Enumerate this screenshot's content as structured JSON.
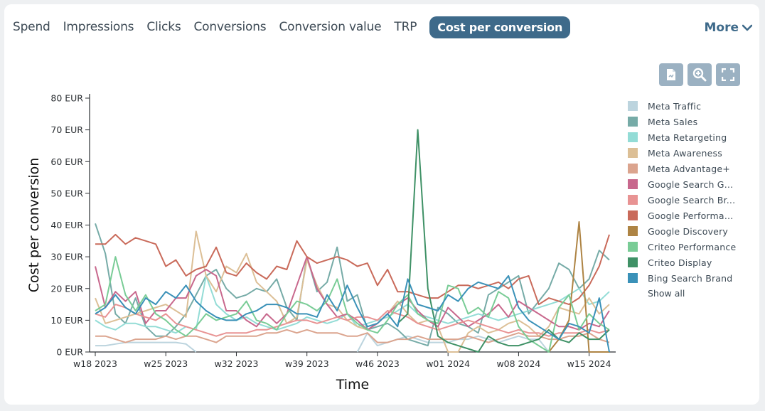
{
  "tabs": [
    {
      "label": "Spend"
    },
    {
      "label": "Impressions"
    },
    {
      "label": "Clicks"
    },
    {
      "label": "Conversions"
    },
    {
      "label": "Conversion value"
    },
    {
      "label": "TRP"
    },
    {
      "label": "Cost per conversion",
      "active": true
    }
  ],
  "more_label": "More",
  "toolbar": {
    "icons": [
      "export-icon",
      "zoom-icon",
      "fullscreen-icon"
    ]
  },
  "legend": {
    "items": [
      {
        "label": "Meta Traffic",
        "color": "#bcd4de"
      },
      {
        "label": "Meta Sales",
        "color": "#76aba7"
      },
      {
        "label": "Meta Retargeting",
        "color": "#93dcd6"
      },
      {
        "label": "Meta Awareness",
        "color": "#dcbf96"
      },
      {
        "label": "Meta Advantage+",
        "color": "#dba48e"
      },
      {
        "label": "Google Search Ge...",
        "color": "#c8688d"
      },
      {
        "label": "Google Search Br...",
        "color": "#e89393"
      },
      {
        "label": "Google Performan...",
        "color": "#c96a5a"
      },
      {
        "label": "Google Discovery",
        "color": "#ae8444"
      },
      {
        "label": "Criteo Performance",
        "color": "#79cc96"
      },
      {
        "label": "Criteo Display",
        "color": "#3f9166"
      },
      {
        "label": "Bing Search Brand",
        "color": "#3a91b8"
      }
    ],
    "show_all": "Show all"
  },
  "chart_data": {
    "type": "line",
    "xlabel": "Time",
    "ylabel": "Cost per conversion",
    "ylim": [
      0,
      80
    ],
    "yticks": [
      "0 EUR",
      "10 EUR",
      "20 EUR",
      "30 EUR",
      "40 EUR",
      "50 EUR",
      "60 EUR",
      "70 EUR",
      "80 EUR"
    ],
    "x_tick_labels": [
      "w18 2023",
      "w25 2023",
      "w32 2023",
      "w39 2023",
      "w46 2023",
      "w01 2024",
      "w08 2024",
      "w15 2024"
    ],
    "x_tick_indices": [
      0,
      7,
      14,
      21,
      28,
      35,
      42,
      49
    ],
    "x": [
      "w18 2023",
      "w19 2023",
      "w20 2023",
      "w21 2023",
      "w22 2023",
      "w23 2023",
      "w24 2023",
      "w25 2023",
      "w26 2023",
      "w27 2023",
      "w28 2023",
      "w29 2023",
      "w30 2023",
      "w31 2023",
      "w32 2023",
      "w33 2023",
      "w34 2023",
      "w35 2023",
      "w36 2023",
      "w37 2023",
      "w38 2023",
      "w39 2023",
      "w40 2023",
      "w41 2023",
      "w42 2023",
      "w43 2023",
      "w44 2023",
      "w45 2023",
      "w46 2023",
      "w47 2023",
      "w48 2023",
      "w49 2023",
      "w50 2023",
      "w51 2023",
      "w52 2023",
      "w01 2024",
      "w02 2024",
      "w03 2024",
      "w04 2024",
      "w05 2024",
      "w06 2024",
      "w07 2024",
      "w08 2024",
      "w09 2024",
      "w10 2024",
      "w11 2024",
      "w12 2024",
      "w13 2024",
      "w14 2024",
      "w15 2024",
      "w16 2024",
      "w17 2024"
    ],
    "grid": false,
    "legend_position": "right",
    "series": [
      {
        "name": "Meta Traffic",
        "color": "#bcd4de",
        "values": [
          2,
          2,
          2.5,
          3,
          3,
          3,
          3,
          3,
          3,
          2.5,
          0,
          null,
          null,
          null,
          null,
          null,
          null,
          null,
          null,
          null,
          null,
          null,
          null,
          null,
          null,
          null,
          0,
          6,
          2,
          3,
          4,
          5,
          4,
          3,
          3,
          3,
          4,
          4,
          5,
          4,
          3,
          4,
          5,
          4,
          4,
          0,
          null,
          null,
          null,
          null,
          null,
          null
        ]
      },
      {
        "name": "Meta Sales",
        "color": "#76aba7",
        "values": [
          40.5,
          31,
          12,
          9,
          17,
          8,
          5,
          5,
          8,
          12,
          18,
          24,
          26,
          20,
          17,
          18,
          20,
          19,
          23,
          14,
          10,
          30,
          19,
          22,
          33,
          16,
          18,
          7,
          8,
          9,
          7,
          4,
          3,
          2,
          14,
          12,
          9,
          8,
          6,
          18,
          20,
          22,
          24,
          12,
          16,
          20,
          28,
          26,
          20,
          23,
          32,
          29
        ]
      },
      {
        "name": "Meta Retargeting",
        "color": "#93dcd6",
        "values": [
          10,
          8,
          7,
          9,
          9,
          8,
          8,
          7,
          6,
          8,
          7,
          24,
          15,
          12,
          10,
          11,
          9,
          8,
          7,
          8,
          9,
          11,
          10,
          9,
          10,
          12,
          8,
          9,
          10,
          11,
          13,
          15,
          12,
          11,
          10,
          9,
          10,
          11,
          12,
          11,
          10,
          11,
          12,
          13,
          14,
          15,
          16,
          18,
          20,
          15,
          16,
          19
        ]
      },
      {
        "name": "Meta Awareness",
        "color": "#dcbf96",
        "values": [
          17,
          9,
          10,
          11,
          12,
          13,
          14,
          15,
          13,
          11,
          38,
          24,
          19,
          27,
          25,
          31,
          22,
          19,
          16,
          9,
          11,
          29,
          21,
          15,
          14,
          10,
          8,
          7,
          9,
          12,
          16,
          12,
          9,
          10,
          8,
          0,
          0,
          6,
          8,
          6,
          7,
          9,
          10,
          8,
          5,
          8,
          14,
          13,
          12,
          17,
          12,
          15
        ]
      },
      {
        "name": "Meta Advantage+",
        "color": "#dba48e",
        "values": [
          5,
          5,
          4,
          3,
          4,
          4,
          4,
          5,
          4,
          5,
          5,
          4,
          3,
          5,
          5,
          5,
          5,
          6,
          6,
          7,
          6,
          7,
          6,
          6,
          6,
          5,
          5,
          6,
          3,
          3,
          4,
          4,
          5,
          4,
          4,
          4,
          4,
          5,
          4,
          3,
          4,
          5,
          6,
          5,
          5,
          4,
          4,
          5,
          5,
          6,
          4,
          3
        ]
      },
      {
        "name": "Google Search Ge...",
        "color": "#c8688d",
        "values": [
          27,
          14,
          19,
          16,
          19,
          9,
          13,
          13,
          17,
          17,
          24,
          26,
          24,
          13,
          13,
          10,
          8,
          12,
          9,
          12,
          21,
          30,
          20,
          15,
          11,
          12,
          10,
          7,
          9,
          12,
          15,
          17,
          13,
          10,
          8,
          14,
          11,
          8,
          10,
          12,
          15,
          11,
          16,
          14,
          12,
          10,
          8,
          8,
          7,
          9,
          8,
          13
        ]
      },
      {
        "name": "Google Search Br...",
        "color": "#e89393",
        "values": [
          12,
          11,
          15,
          14,
          12,
          11,
          10,
          12,
          9,
          8,
          7,
          6,
          5,
          6,
          6,
          6,
          7,
          7,
          8,
          9,
          10,
          10,
          9,
          10,
          11,
          10,
          11,
          11,
          10,
          13,
          12,
          11,
          9,
          8,
          7,
          8,
          9,
          10,
          9,
          8,
          7,
          6,
          7,
          6,
          6,
          5,
          6,
          6,
          6,
          7,
          6,
          7
        ]
      },
      {
        "name": "Google Performan...",
        "color": "#c96a5a",
        "values": [
          34,
          34,
          37,
          34,
          36,
          35,
          34,
          27,
          29,
          24,
          26,
          27,
          33,
          25,
          24,
          28,
          25,
          23,
          27,
          26,
          35,
          30,
          28,
          29,
          30,
          29,
          27,
          28,
          21,
          26,
          19,
          19,
          18,
          17,
          17,
          19,
          21,
          21,
          20,
          21,
          22,
          20,
          23,
          24,
          15,
          17,
          16,
          15,
          17,
          21,
          27,
          37
        ]
      },
      {
        "name": "Google Discovery",
        "color": "#ae8444",
        "values": [
          null,
          null,
          null,
          null,
          null,
          null,
          null,
          null,
          null,
          null,
          null,
          null,
          null,
          null,
          null,
          null,
          null,
          null,
          null,
          null,
          null,
          null,
          null,
          null,
          null,
          null,
          null,
          null,
          null,
          null,
          null,
          null,
          null,
          null,
          null,
          null,
          null,
          null,
          null,
          null,
          null,
          null,
          null,
          null,
          null,
          0,
          4,
          10,
          41,
          0,
          0,
          0
        ]
      },
      {
        "name": "Criteo Performance",
        "color": "#79cc96",
        "values": [
          13,
          15,
          30,
          18,
          13,
          18,
          12,
          10,
          7,
          5,
          8,
          12,
          10,
          11,
          12,
          16,
          10,
          9,
          7,
          12,
          16,
          15,
          13,
          16,
          23,
          12,
          9,
          7,
          6,
          10,
          15,
          18,
          12,
          10,
          9,
          21,
          20,
          12,
          14,
          11,
          19,
          17,
          8,
          4,
          2,
          0,
          14,
          18,
          7,
          12,
          9,
          7
        ]
      },
      {
        "name": "Criteo Display",
        "color": "#3f9166",
        "values": [
          null,
          null,
          null,
          null,
          null,
          null,
          null,
          null,
          null,
          null,
          null,
          null,
          null,
          null,
          null,
          null,
          null,
          null,
          null,
          null,
          null,
          null,
          null,
          null,
          null,
          null,
          null,
          null,
          null,
          null,
          9,
          12,
          70,
          20,
          5,
          3,
          2,
          1,
          0,
          5,
          3,
          2,
          2,
          3,
          4,
          7,
          4,
          3,
          6,
          4,
          4,
          7
        ]
      },
      {
        "name": "Bing Search Brand",
        "color": "#3a91b8",
        "values": [
          12,
          14,
          18,
          14,
          12,
          17,
          15,
          19,
          17,
          21,
          16,
          13,
          11,
          10,
          10,
          12,
          13,
          15,
          15,
          14,
          12,
          12,
          11,
          18,
          13,
          21,
          14,
          8,
          9,
          12,
          8,
          23,
          15,
          14,
          13,
          18,
          16,
          20,
          22,
          21,
          20,
          24,
          14,
          10,
          8,
          6,
          4,
          9,
          8,
          6,
          17,
          0
        ]
      }
    ]
  }
}
